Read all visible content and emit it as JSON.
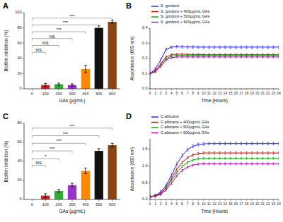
{
  "chart_data": [
    {
      "type": "bar",
      "title": "A",
      "categories": [
        "0",
        "100",
        "200",
        "300",
        "400",
        "500",
        "600"
      ],
      "values": [
        0,
        5,
        6,
        5,
        26,
        80,
        88
      ],
      "errors": [
        0,
        2,
        1.5,
        1.5,
        5,
        3,
        2
      ],
      "colors": [
        "#999999",
        "#cc2222",
        "#33aa33",
        "#9933cc",
        "#ff8800",
        "#111111",
        "#8B4513"
      ],
      "xlabel": "GAs (μg/mL)",
      "ylabel": "Biofilm inhibition (%)",
      "ylim": [
        0,
        100
      ],
      "yticks": [
        0,
        20,
        40,
        60,
        80,
        100
      ],
      "annotations": [
        {
          "from": "0",
          "to": "100",
          "y": 48,
          "text": "NS"
        },
        {
          "from": "0",
          "to": "200",
          "y": 57,
          "text": "NS"
        },
        {
          "from": "0",
          "to": "300",
          "y": 66,
          "text": "NS"
        },
        {
          "from": "0",
          "to": "400",
          "y": 75,
          "text": "***"
        },
        {
          "from": "0",
          "to": "500",
          "y": 84,
          "text": "***"
        },
        {
          "from": "0",
          "to": "600",
          "y": 93,
          "text": "***"
        }
      ]
    },
    {
      "type": "line",
      "title": "B",
      "x": [
        0,
        1,
        2,
        3,
        4,
        5,
        6,
        7,
        8,
        9,
        10,
        11,
        12,
        13,
        14,
        15,
        16,
        17,
        18,
        19,
        20,
        21,
        22,
        23,
        24
      ],
      "xlim": [
        0,
        24
      ],
      "xticks": [
        0,
        1,
        2,
        3,
        4,
        5,
        6,
        7,
        8,
        9,
        10,
        11,
        12,
        13,
        14,
        15,
        16,
        17,
        18,
        19,
        20,
        21,
        22,
        23,
        24
      ],
      "ylim": [
        0.0,
        0.4
      ],
      "yticks": [
        {
          "value": 0.0,
          "label": "0.0"
        },
        0.1,
        0.2,
        0.3,
        0.4
      ],
      "xlabel": "Time (Hours)",
      "ylabel": "Absorbance (600 nm)",
      "legend": "upper left",
      "series": [
        {
          "name": "S. gordonii",
          "color": "#1a1aff",
          "error": 0.008,
          "values": [
            0.1,
            0.13,
            0.19,
            0.26,
            0.275,
            0.278,
            0.277,
            0.276,
            0.276,
            0.275,
            0.275,
            0.275,
            0.275,
            0.275,
            0.275,
            0.275,
            0.275,
            0.275,
            0.275,
            0.275,
            0.275,
            0.275,
            0.275,
            0.275,
            0.275
          ]
        },
        {
          "name": "S. gordonii + 400μg/mL GAs",
          "color": "#cc0000",
          "error": 0.007,
          "values": [
            0.1,
            0.12,
            0.165,
            0.21,
            0.225,
            0.228,
            0.228,
            0.227,
            0.226,
            0.226,
            0.225,
            0.225,
            0.225,
            0.225,
            0.225,
            0.225,
            0.225,
            0.225,
            0.225,
            0.225,
            0.225,
            0.225,
            0.225,
            0.225,
            0.225
          ]
        },
        {
          "name": "S. gordonii + 500μg/mL GAs",
          "color": "#00aa00",
          "error": 0.006,
          "values": [
            0.1,
            0.115,
            0.155,
            0.2,
            0.215,
            0.22,
            0.22,
            0.22,
            0.22,
            0.22,
            0.22,
            0.22,
            0.22,
            0.22,
            0.22,
            0.22,
            0.22,
            0.22,
            0.22,
            0.22,
            0.22,
            0.22,
            0.22,
            0.22,
            0.22
          ]
        },
        {
          "name": "S. gordonii + 600μg/mL GAs",
          "color": "#aa00aa",
          "error": 0.006,
          "values": [
            0.1,
            0.112,
            0.148,
            0.19,
            0.205,
            0.21,
            0.21,
            0.21,
            0.21,
            0.21,
            0.21,
            0.21,
            0.21,
            0.21,
            0.21,
            0.21,
            0.21,
            0.21,
            0.21,
            0.21,
            0.21,
            0.21,
            0.21,
            0.21,
            0.21
          ]
        }
      ]
    },
    {
      "type": "bar",
      "title": "C",
      "categories": [
        "0",
        "100",
        "200",
        "300",
        "400",
        "500",
        "600"
      ],
      "values": [
        0,
        4,
        9,
        15,
        30,
        51,
        57
      ],
      "errors": [
        0,
        2,
        1.5,
        2,
        3,
        2.5,
        2
      ],
      "colors": [
        "#999999",
        "#cc2222",
        "#33aa33",
        "#9933cc",
        "#ff8800",
        "#111111",
        "#8B4513"
      ],
      "xlabel": "GAs (μg/mL)",
      "ylabel": "Biofilm inhibition (%)",
      "ylim": [
        0,
        80
      ],
      "yticks": [
        0,
        20,
        40,
        60,
        80
      ],
      "annotations": [
        {
          "from": "0",
          "to": "100",
          "y": 36,
          "text": "NS"
        },
        {
          "from": "0",
          "to": "200",
          "y": 43,
          "text": "*"
        },
        {
          "from": "0",
          "to": "300",
          "y": 51,
          "text": "***"
        },
        {
          "from": "0",
          "to": "400",
          "y": 59,
          "text": "***"
        },
        {
          "from": "0",
          "to": "500",
          "y": 67,
          "text": "***"
        },
        {
          "from": "0",
          "to": "600",
          "y": 75,
          "text": "***"
        }
      ]
    },
    {
      "type": "line",
      "title": "D",
      "x": [
        0,
        1,
        2,
        3,
        4,
        5,
        6,
        7,
        8,
        9,
        10,
        11,
        12,
        13,
        14,
        15,
        16,
        17,
        18,
        19,
        20,
        21,
        22,
        23,
        24
      ],
      "xlim": [
        0,
        24
      ],
      "xticks": [
        0,
        1,
        2,
        3,
        4,
        5,
        6,
        7,
        8,
        9,
        10,
        11,
        12,
        13,
        14,
        15,
        16,
        17,
        18,
        19,
        20,
        21,
        22,
        23,
        24
      ],
      "ylim": [
        0.0,
        1.8
      ],
      "yticks": [
        {
          "value": 0.0,
          "label": "0.0"
        },
        0.5,
        {
          "value": 1.0,
          "label": "1.0"
        },
        1.5
      ],
      "xlabel": "Time (Hours)",
      "ylabel": "Absorbance (600 nm)",
      "legend": "upper left",
      "series": [
        {
          "name": "C.albicans",
          "color": "#1a1aff",
          "error": 0.04,
          "values": [
            0.08,
            0.12,
            0.22,
            0.42,
            0.72,
            1.05,
            1.3,
            1.48,
            1.58,
            1.63,
            1.65,
            1.66,
            1.66,
            1.66,
            1.66,
            1.66,
            1.66,
            1.66,
            1.66,
            1.66,
            1.66,
            1.66,
            1.66,
            1.66,
            1.66
          ]
        },
        {
          "name": "C.albicans + 400μg/mL GAs",
          "color": "#cc0000",
          "error": 0.035,
          "values": [
            0.08,
            0.11,
            0.19,
            0.36,
            0.62,
            0.9,
            1.1,
            1.24,
            1.32,
            1.36,
            1.38,
            1.38,
            1.38,
            1.38,
            1.38,
            1.38,
            1.38,
            1.38,
            1.38,
            1.38,
            1.38,
            1.38,
            1.38,
            1.38,
            1.38
          ]
        },
        {
          "name": "C.albicans + 500μg/mL GAs",
          "color": "#00aa00",
          "error": 0.03,
          "values": [
            0.08,
            0.1,
            0.17,
            0.32,
            0.55,
            0.8,
            0.98,
            1.1,
            1.17,
            1.21,
            1.22,
            1.22,
            1.22,
            1.22,
            1.22,
            1.22,
            1.22,
            1.22,
            1.22,
            1.22,
            1.22,
            1.22,
            1.22,
            1.22,
            1.22
          ]
        },
        {
          "name": "C.albicans + 600μg/mL GAs",
          "color": "#aa00aa",
          "error": 0.03,
          "values": [
            0.08,
            0.1,
            0.15,
            0.28,
            0.48,
            0.7,
            0.86,
            0.96,
            1.02,
            1.05,
            1.06,
            1.06,
            1.06,
            1.06,
            1.06,
            1.06,
            1.06,
            1.06,
            1.06,
            1.06,
            1.06,
            1.06,
            1.06,
            1.06,
            1.06
          ]
        }
      ]
    }
  ]
}
